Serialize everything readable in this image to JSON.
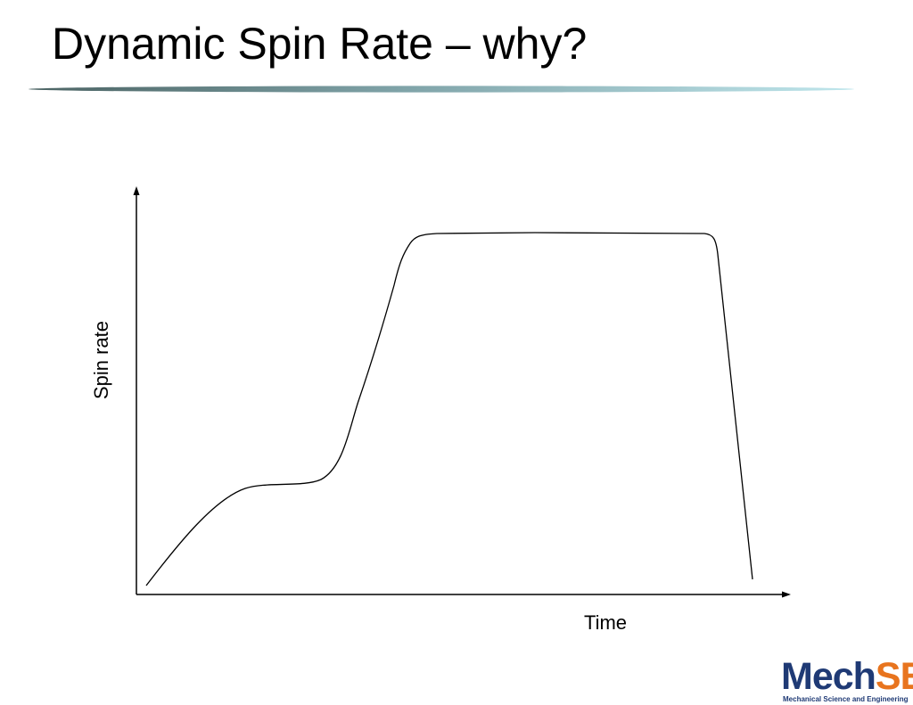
{
  "slide": {
    "title": "Dynamic Spin Rate – why?"
  },
  "diagram": {
    "y_axis_label": "Spin rate",
    "x_axis_label": "Time",
    "line_color": "#000000"
  },
  "logo": {
    "primary": "Mech",
    "accent": "SE",
    "subtitle": "Mechanical Science and Engineering",
    "primary_color": "#1f3a75",
    "accent_color": "#e8741e"
  },
  "theme": {
    "divider_dark": "#4b6363",
    "divider_light": "#b6dfe6"
  }
}
